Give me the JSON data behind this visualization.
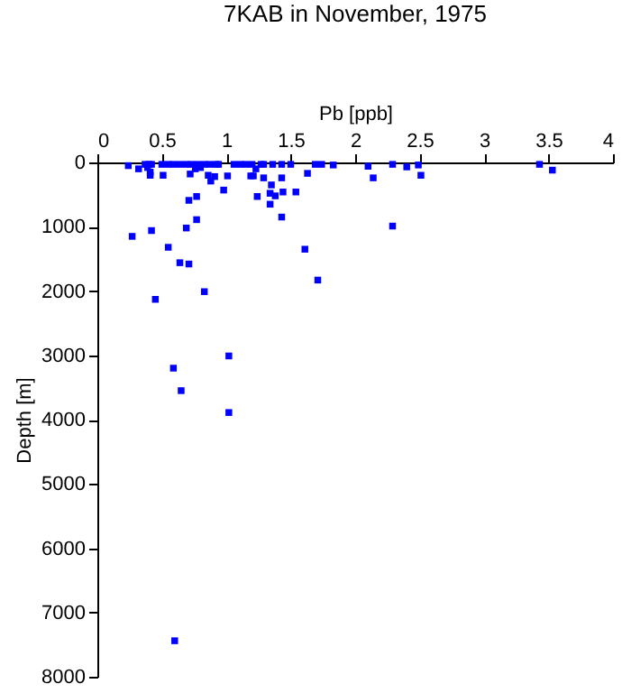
{
  "chart_data": {
    "type": "scatter",
    "title": "7KAB in November, 1975",
    "xlabel": "Pb [ppb]",
    "ylabel": "Depth [m]",
    "marker": "square",
    "color": "#0000ff",
    "x": [
      0.24,
      0.32,
      0.37,
      0.4,
      0.42,
      0.5,
      0.55,
      0.59,
      0.64,
      0.69,
      0.73,
      0.78,
      0.83,
      0.87,
      0.92,
      0.94,
      1.06,
      1.11,
      1.15,
      1.2,
      1.27,
      1.29,
      1.36,
      1.43,
      1.5,
      1.69,
      1.74,
      1.83,
      0.39,
      0.41,
      0.41,
      0.51,
      0.72,
      0.76,
      0.8,
      0.86,
      0.88,
      0.91,
      0.98,
      1.01,
      1.19,
      1.21,
      1.23,
      1.24,
      1.29,
      1.35,
      1.34,
      1.38,
      1.34,
      1.43,
      1.44,
      1.43,
      1.54,
      1.63,
      0.71,
      0.77,
      0.77,
      0.27,
      0.42,
      0.69,
      0.55,
      0.64,
      0.71,
      1.61,
      1.71,
      0.83,
      0.45,
      2.1,
      2.14,
      2.29,
      2.29,
      2.4,
      2.49,
      2.51,
      3.43,
      3.53,
      1.02,
      0.59,
      0.65,
      1.02,
      0.6
    ],
    "values": [
      50,
      100,
      30,
      30,
      30,
      30,
      30,
      30,
      30,
      30,
      30,
      30,
      30,
      30,
      30,
      30,
      30,
      30,
      30,
      30,
      30,
      30,
      30,
      30,
      30,
      30,
      30,
      40,
      80,
      150,
      200,
      200,
      180,
      100,
      80,
      200,
      290,
      220,
      430,
      210,
      210,
      210,
      100,
      530,
      240,
      350,
      480,
      520,
      650,
      240,
      460,
      850,
      460,
      170,
      590,
      530,
      890,
      1150,
      1060,
      1020,
      1320,
      1560,
      1580,
      1350,
      1830,
      2010,
      2130,
      60,
      240,
      30,
      990,
      70,
      40,
      200,
      30,
      120,
      3010,
      3200,
      3550,
      3890,
      7440
    ],
    "xlim": [
      0,
      4
    ],
    "xticks": [
      0,
      0.5,
      1,
      1.5,
      2,
      2.5,
      3,
      3.5,
      4
    ],
    "ylim": [
      8000,
      0
    ],
    "yticks": [
      0,
      1000,
      2000,
      3000,
      4000,
      5000,
      6000,
      7000,
      8000
    ]
  }
}
